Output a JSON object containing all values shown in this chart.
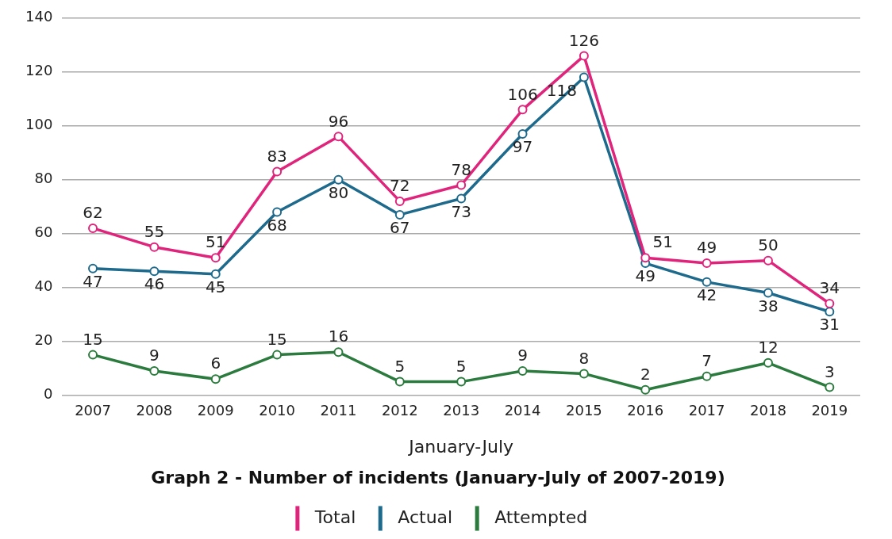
{
  "chart_data": {
    "type": "line",
    "title": "Graph 2 - Number of incidents (January-July of 2007-2019)",
    "xlabel": "January-July",
    "categories": [
      "2007",
      "2008",
      "2009",
      "2010",
      "2011",
      "2012",
      "2013",
      "2014",
      "2015",
      "2016",
      "2017",
      "2018",
      "2019"
    ],
    "series": [
      {
        "name": "Total",
        "color": "#e0237b",
        "values": [
          62,
          55,
          51,
          83,
          96,
          72,
          78,
          106,
          126,
          51,
          49,
          50,
          34
        ]
      },
      {
        "name": "Actual",
        "color": "#1d6a8c",
        "values": [
          47,
          46,
          45,
          68,
          80,
          67,
          73,
          97,
          118,
          49,
          42,
          38,
          31
        ]
      },
      {
        "name": "Attempted",
        "color": "#2a7b3d",
        "values": [
          15,
          9,
          6,
          15,
          16,
          5,
          5,
          9,
          8,
          2,
          7,
          12,
          3
        ]
      }
    ],
    "ylim": [
      0,
      140
    ],
    "yticks": [
      0,
      20,
      40,
      60,
      80,
      100,
      120,
      140
    ],
    "grid": "y",
    "legend": "bottom",
    "marker": "circle",
    "line_style": "solid",
    "data_labels": true
  }
}
